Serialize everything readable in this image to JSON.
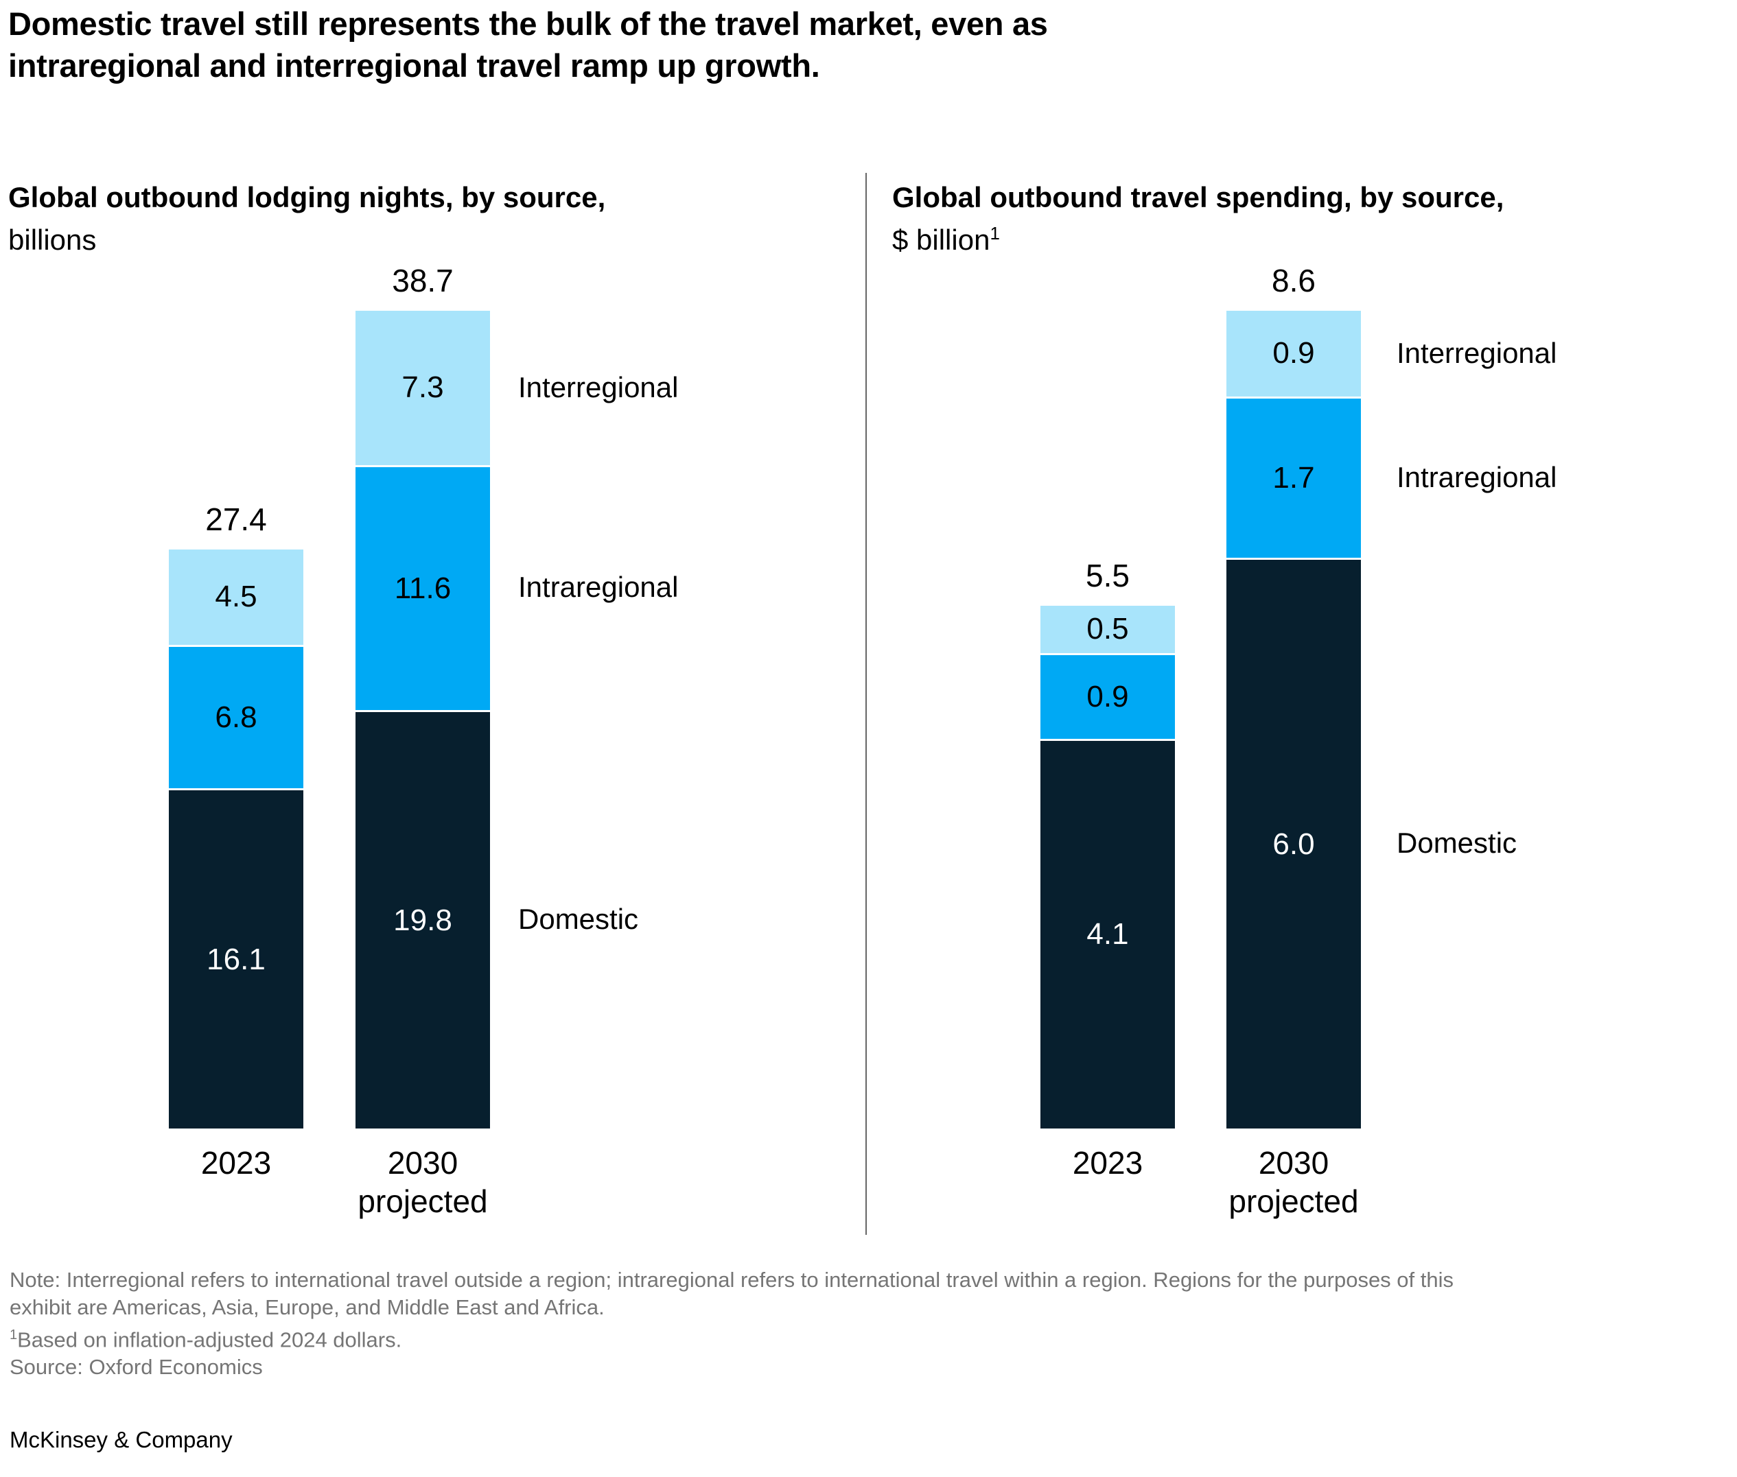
{
  "title_line1": "Domestic travel still represents the bulk of the travel market, even as",
  "title_line2": "intraregional and interregional travel ramp up growth.",
  "chart_data": [
    {
      "type": "bar",
      "stacked": true,
      "title": "Global outbound lodging nights, by source,",
      "unit_label": "billions",
      "unit_sup": "",
      "categories": [
        {
          "label": "2023",
          "sublabel": ""
        },
        {
          "label": "2030",
          "sublabel": "projected"
        }
      ],
      "series": [
        {
          "name": "Interregional",
          "values": [
            "4.5",
            "7.3"
          ]
        },
        {
          "name": "Intraregional",
          "values": [
            "6.8",
            "11.6"
          ]
        },
        {
          "name": "Domestic",
          "values": [
            "16.1",
            "19.8"
          ]
        }
      ],
      "totals": [
        "27.4",
        "38.7"
      ],
      "ylim": [
        0,
        38.7
      ],
      "legend": [
        "Interregional",
        "Intraregional",
        "Domestic"
      ],
      "legend_position": "right-of-2030-bar",
      "grid": false
    },
    {
      "type": "bar",
      "stacked": true,
      "title": "Global outbound travel spending, by source,",
      "unit_label": "$ billion",
      "unit_sup": "1",
      "categories": [
        {
          "label": "2023",
          "sublabel": ""
        },
        {
          "label": "2030",
          "sublabel": "projected"
        }
      ],
      "series": [
        {
          "name": "Interregional",
          "values": [
            "0.5",
            "0.9"
          ]
        },
        {
          "name": "Intraregional",
          "values": [
            "0.9",
            "1.7"
          ]
        },
        {
          "name": "Domestic",
          "values": [
            "4.1",
            "6.0"
          ]
        }
      ],
      "totals": [
        "5.5",
        "8.6"
      ],
      "ylim": [
        0,
        8.6
      ],
      "legend": [
        "Interregional",
        "Intraregional",
        "Domestic"
      ],
      "legend_position": "right-of-2030-bar",
      "grid": false
    }
  ],
  "colors": {
    "Interregional": "#A8E4FB",
    "Intraregional": "#00A9F4",
    "Domestic": "#071F2E",
    "domestic_label_text": "#FFFFFF",
    "segment_label_text": "#000000",
    "note_text": "#757575",
    "divider": "#666666"
  },
  "notes": {
    "line1": "Note: Interregional refers to international travel outside a region; intraregional refers to international travel within a region. Regions for the purposes of this",
    "line2": "exhibit are Americas, Asia, Europe, and Middle East and Africa.",
    "footnote_sup": "1",
    "footnote": "Based on inflation-adjusted 2024 dollars.",
    "source": "Source: Oxford Economics"
  },
  "footer": "McKinsey & Company"
}
